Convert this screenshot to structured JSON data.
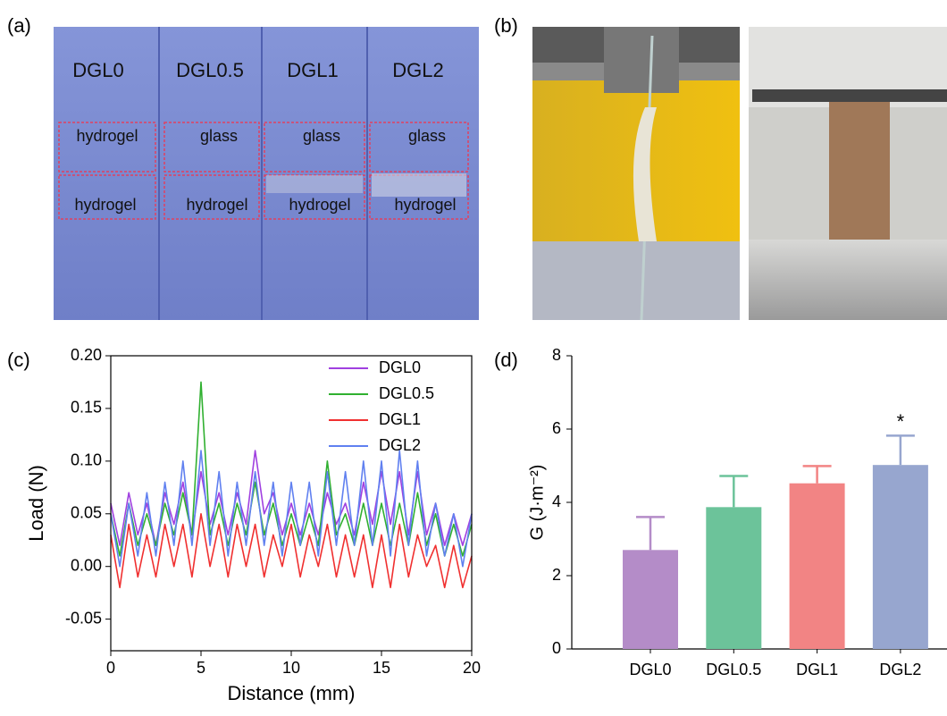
{
  "panel_labels": [
    "(a)",
    "(b)",
    "(c)",
    "(d)"
  ],
  "photo_a": {
    "columns": [
      "DGL0",
      "DGL0.5",
      "DGL1",
      "DGL2"
    ],
    "top_labels": [
      "hydrogel",
      "glass",
      "glass",
      "glass"
    ],
    "bottom_labels": [
      "hydrogel",
      "hydrogel",
      "hydrogel",
      "hydrogel"
    ]
  },
  "chart_data": [
    {
      "type": "line",
      "xlabel": "Distance (mm)",
      "ylabel": "Load (N)",
      "xlim": [
        0,
        20
      ],
      "ylim": [
        -0.08,
        0.2
      ],
      "xticks": [
        0,
        5,
        10,
        15,
        20
      ],
      "yticks": [
        -0.05,
        {
          "value": 0,
          "label": "0.00"
        },
        0.05,
        {
          "value": 0.1,
          "label": "0.10"
        },
        0.15,
        {
          "value": 0.2,
          "label": "0.20"
        }
      ],
      "legend": "upper right",
      "x": [
        0,
        0.5,
        1,
        1.5,
        2,
        2.5,
        3,
        3.5,
        4,
        4.5,
        5,
        5.5,
        6,
        6.5,
        7,
        7.5,
        8,
        8.5,
        9,
        9.5,
        10,
        10.5,
        11,
        11.5,
        12,
        12.5,
        13,
        13.5,
        14,
        14.5,
        15,
        15.5,
        16,
        16.5,
        17,
        17.5,
        18,
        18.5,
        19,
        19.5,
        20
      ],
      "series": [
        {
          "name": "DGL0",
          "color": "#a040e0",
          "values": [
            0.06,
            0.02,
            0.07,
            0.03,
            0.06,
            0.02,
            0.07,
            0.04,
            0.08,
            0.03,
            0.09,
            0.04,
            0.07,
            0.03,
            0.07,
            0.04,
            0.11,
            0.05,
            0.07,
            0.03,
            0.06,
            0.03,
            0.06,
            0.03,
            0.07,
            0.04,
            0.06,
            0.03,
            0.08,
            0.04,
            0.09,
            0.04,
            0.09,
            0.03,
            0.09,
            0.03,
            0.06,
            0.02,
            0.05,
            0.02,
            0.05
          ]
        },
        {
          "name": "DGL0.5",
          "color": "#30b030",
          "values": [
            0.05,
            0.01,
            0.06,
            0.02,
            0.05,
            0.02,
            0.06,
            0.03,
            0.07,
            0.03,
            0.175,
            0.03,
            0.06,
            0.02,
            0.06,
            0.03,
            0.08,
            0.03,
            0.06,
            0.02,
            0.05,
            0.02,
            0.05,
            0.02,
            0.1,
            0.03,
            0.05,
            0.02,
            0.06,
            0.02,
            0.06,
            0.02,
            0.06,
            0.02,
            0.07,
            0.02,
            0.05,
            0.01,
            0.04,
            0.01,
            0.04
          ]
        },
        {
          "name": "DGL1",
          "color": "#f03030",
          "values": [
            0.03,
            -0.02,
            0.04,
            -0.01,
            0.03,
            -0.01,
            0.04,
            0,
            0.04,
            -0.01,
            0.05,
            0,
            0.04,
            -0.01,
            0.04,
            0,
            0.04,
            -0.01,
            0.03,
            0,
            0.04,
            -0.01,
            0.03,
            0,
            0.04,
            -0.01,
            0.03,
            -0.01,
            0.03,
            -0.02,
            0.03,
            -0.02,
            0.04,
            -0.01,
            0.03,
            0,
            0.02,
            -0.02,
            0.02,
            -0.02,
            0.01
          ]
        },
        {
          "name": "DGL2",
          "color": "#6080f0",
          "values": [
            0.05,
            0,
            0.06,
            0.01,
            0.07,
            0.01,
            0.08,
            0.02,
            0.1,
            0.02,
            0.11,
            0.02,
            0.09,
            0.01,
            0.08,
            0.02,
            0.09,
            0.02,
            0.08,
            0.01,
            0.08,
            0.02,
            0.08,
            0.01,
            0.09,
            0.02,
            0.09,
            0.02,
            0.1,
            0.02,
            0.1,
            0.01,
            0.11,
            0.02,
            0.1,
            0.01,
            0.06,
            0.01,
            0.05,
            0,
            0.05
          ]
        }
      ]
    },
    {
      "type": "bar",
      "ylabel": "G (J·m⁻²)",
      "categories": [
        "DGL0",
        "DGL0.5",
        "DGL1",
        "DGL2"
      ],
      "values": [
        2.7,
        3.87,
        4.52,
        5.02
      ],
      "errors": [
        0.9,
        0.85,
        0.47,
        0.8
      ],
      "colors": [
        "#b48cc8",
        "#6cc39a",
        "#f28484",
        "#97a6cf"
      ],
      "ylim": [
        0,
        8
      ],
      "yticks": [
        0,
        2,
        4,
        6,
        8
      ],
      "annotations": [
        {
          "text": "*",
          "category": "DGL2"
        }
      ]
    }
  ]
}
